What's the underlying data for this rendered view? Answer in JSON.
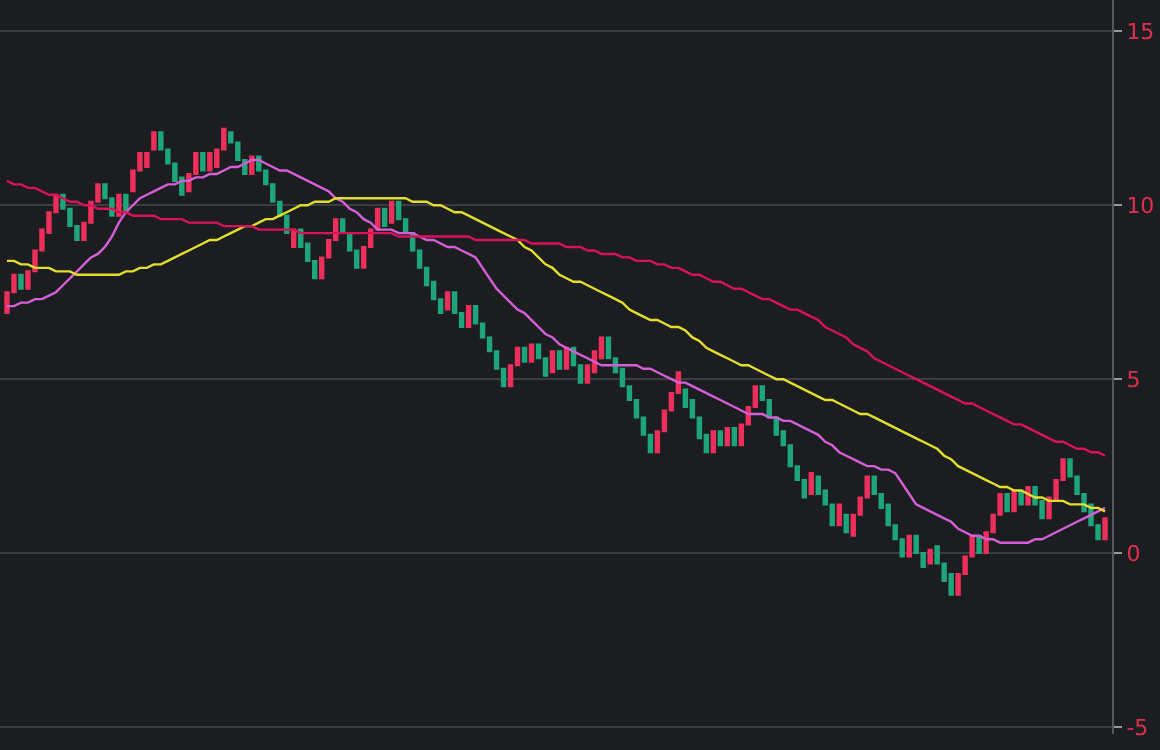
{
  "chart_data": {
    "type": "candlestick",
    "categories": [
      null,
      null,
      null,
      null,
      null,
      null,
      null,
      null,
      null,
      null,
      null,
      null,
      null,
      null,
      null,
      null,
      null,
      null,
      null,
      null,
      null,
      null,
      null,
      null,
      null,
      null,
      null,
      null,
      null,
      null,
      null,
      null,
      null,
      null,
      null,
      null,
      null,
      null,
      null,
      null,
      null,
      null,
      null,
      null,
      null,
      null,
      null,
      null,
      null,
      null,
      null,
      null,
      null,
      null,
      null,
      null,
      null,
      null,
      null,
      null,
      null,
      null,
      null,
      null,
      null,
      null,
      null,
      null,
      null,
      null,
      null,
      null,
      null,
      null,
      null,
      null,
      null,
      null,
      null,
      null,
      null,
      null,
      null,
      null,
      null,
      null,
      null,
      null,
      null,
      null,
      null,
      null,
      null,
      null,
      null,
      null,
      null,
      null,
      null,
      null,
      null,
      null,
      null,
      null,
      null,
      null,
      null,
      null,
      null,
      null,
      null,
      null,
      null,
      null,
      null,
      null,
      null,
      null,
      null,
      null,
      null,
      null,
      null,
      null,
      null,
      null,
      null,
      null,
      null,
      null,
      null,
      null,
      null,
      null,
      null,
      null,
      null,
      null,
      null,
      null,
      null,
      null,
      null,
      null,
      null,
      null,
      null,
      null,
      null,
      null,
      null,
      null,
      null,
      null,
      null,
      null,
      null,
      null
    ],
    "ohlc": [
      [
        6.9,
        7.5,
        6.9,
        7.5
      ],
      [
        7.5,
        8.0,
        7.5,
        8.0
      ],
      [
        8.0,
        8.0,
        7.6,
        7.6
      ],
      [
        7.6,
        8.1,
        7.6,
        8.1
      ],
      [
        8.1,
        8.7,
        8.1,
        8.7
      ],
      [
        8.7,
        9.3,
        8.7,
        9.3
      ],
      [
        9.2,
        9.8,
        9.2,
        9.8
      ],
      [
        9.8,
        10.3,
        9.8,
        10.3
      ],
      [
        10.3,
        10.3,
        9.9,
        9.9
      ],
      [
        9.9,
        9.9,
        9.4,
        9.4
      ],
      [
        9.4,
        9.4,
        9.0,
        9.0
      ],
      [
        9.0,
        9.5,
        9.0,
        9.5
      ],
      [
        9.5,
        10.1,
        9.5,
        10.1
      ],
      [
        10.1,
        10.6,
        10.1,
        10.6
      ],
      [
        10.6,
        10.6,
        10.2,
        10.2
      ],
      [
        10.2,
        10.2,
        9.7,
        9.7
      ],
      [
        9.7,
        10.3,
        9.7,
        10.3
      ],
      [
        10.3,
        10.3,
        9.8,
        9.8
      ],
      [
        10.4,
        11.0,
        10.4,
        11.0
      ],
      [
        11.0,
        11.5,
        11.0,
        11.5
      ],
      [
        11.1,
        11.5,
        11.1,
        11.5
      ],
      [
        11.6,
        12.1,
        11.6,
        12.1
      ],
      [
        12.1,
        12.1,
        11.6,
        11.6
      ],
      [
        11.6,
        11.6,
        11.2,
        11.2
      ],
      [
        11.2,
        11.2,
        10.7,
        10.7
      ],
      [
        10.8,
        10.8,
        10.3,
        10.3
      ],
      [
        10.4,
        10.9,
        10.4,
        10.9
      ],
      [
        10.9,
        11.5,
        10.9,
        11.5
      ],
      [
        11.5,
        11.5,
        11.0,
        11.0
      ],
      [
        11.0,
        11.5,
        11.0,
        11.5
      ],
      [
        11.1,
        11.6,
        11.1,
        11.6
      ],
      [
        11.6,
        12.2,
        11.6,
        12.2
      ],
      [
        12.1,
        12.1,
        11.8,
        11.8
      ],
      [
        11.8,
        11.8,
        11.3,
        11.3
      ],
      [
        11.3,
        11.3,
        10.9,
        10.9
      ],
      [
        10.9,
        11.4,
        10.9,
        11.4
      ],
      [
        11.4,
        11.4,
        11.0,
        11.0
      ],
      [
        11.0,
        11.0,
        10.6,
        10.6
      ],
      [
        10.6,
        10.6,
        10.1,
        10.1
      ],
      [
        10.1,
        10.1,
        9.7,
        9.7
      ],
      [
        9.7,
        9.7,
        9.2,
        9.2
      ],
      [
        8.8,
        9.3,
        8.8,
        9.3
      ],
      [
        9.3,
        9.3,
        8.8,
        8.8
      ],
      [
        8.9,
        8.9,
        8.4,
        8.4
      ],
      [
        8.4,
        8.4,
        7.9,
        7.9
      ],
      [
        7.9,
        8.5,
        7.9,
        8.5
      ],
      [
        8.5,
        9.0,
        8.5,
        9.0
      ],
      [
        9.0,
        9.6,
        9.0,
        9.6
      ],
      [
        9.6,
        9.6,
        9.2,
        9.2
      ],
      [
        9.2,
        9.2,
        8.7,
        8.7
      ],
      [
        8.7,
        8.7,
        8.2,
        8.2
      ],
      [
        8.2,
        8.8,
        8.2,
        8.8
      ],
      [
        8.8,
        9.3,
        8.8,
        9.3
      ],
      [
        9.3,
        9.9,
        9.3,
        9.9
      ],
      [
        9.9,
        9.9,
        9.4,
        9.4
      ],
      [
        9.5,
        10.1,
        9.5,
        10.1
      ],
      [
        10.1,
        10.1,
        9.6,
        9.6
      ],
      [
        9.6,
        9.6,
        9.2,
        9.2
      ],
      [
        9.2,
        9.2,
        8.7,
        8.7
      ],
      [
        8.7,
        8.7,
        8.2,
        8.2
      ],
      [
        8.2,
        8.2,
        7.7,
        7.7
      ],
      [
        7.8,
        7.8,
        7.3,
        7.3
      ],
      [
        7.3,
        7.3,
        6.9,
        6.9
      ],
      [
        7.0,
        7.5,
        7.0,
        7.5
      ],
      [
        7.5,
        7.5,
        6.9,
        6.9
      ],
      [
        6.9,
        6.9,
        6.5,
        6.5
      ],
      [
        6.5,
        7.1,
        6.5,
        7.1
      ],
      [
        7.1,
        7.1,
        6.6,
        6.6
      ],
      [
        6.6,
        6.6,
        6.2,
        6.2
      ],
      [
        6.2,
        6.2,
        5.8,
        5.8
      ],
      [
        5.8,
        5.8,
        5.3,
        5.3
      ],
      [
        5.3,
        5.3,
        4.8,
        4.8
      ],
      [
        4.8,
        5.4,
        4.8,
        5.4
      ],
      [
        5.4,
        5.9,
        5.4,
        5.9
      ],
      [
        5.9,
        5.9,
        5.5,
        5.5
      ],
      [
        5.5,
        6.0,
        5.5,
        6.0
      ],
      [
        6.0,
        6.0,
        5.6,
        5.6
      ],
      [
        5.6,
        5.6,
        5.1,
        5.1
      ],
      [
        5.2,
        5.8,
        5.2,
        5.8
      ],
      [
        5.8,
        5.8,
        5.3,
        5.3
      ],
      [
        5.3,
        5.9,
        5.3,
        5.9
      ],
      [
        5.9,
        5.9,
        5.4,
        5.4
      ],
      [
        5.4,
        5.4,
        4.9,
        4.9
      ],
      [
        4.9,
        5.4,
        4.9,
        5.4
      ],
      [
        5.2,
        5.8,
        5.2,
        5.8
      ],
      [
        5.6,
        6.2,
        5.6,
        6.2
      ],
      [
        6.2,
        6.2,
        5.6,
        5.6
      ],
      [
        5.6,
        5.6,
        5.2,
        5.2
      ],
      [
        5.3,
        5.3,
        4.8,
        4.8
      ],
      [
        4.8,
        4.8,
        4.4,
        4.4
      ],
      [
        4.4,
        4.4,
        3.9,
        3.9
      ],
      [
        3.9,
        3.9,
        3.4,
        3.4
      ],
      [
        3.4,
        3.4,
        2.9,
        2.9
      ],
      [
        2.9,
        3.5,
        2.9,
        3.5
      ],
      [
        3.5,
        4.1,
        3.5,
        4.1
      ],
      [
        4.1,
        4.6,
        4.1,
        4.6
      ],
      [
        4.6,
        5.2,
        4.6,
        5.2
      ],
      [
        4.7,
        4.7,
        4.2,
        4.2
      ],
      [
        4.4,
        4.4,
        3.9,
        3.9
      ],
      [
        3.9,
        3.9,
        3.3,
        3.3
      ],
      [
        3.4,
        3.4,
        2.9,
        2.9
      ],
      [
        2.9,
        3.5,
        2.9,
        3.5
      ],
      [
        3.5,
        3.5,
        3.1,
        3.1
      ],
      [
        3.1,
        3.6,
        3.1,
        3.6
      ],
      [
        3.6,
        3.6,
        3.1,
        3.1
      ],
      [
        3.1,
        3.7,
        3.1,
        3.7
      ],
      [
        3.7,
        4.2,
        3.7,
        4.2
      ],
      [
        4.2,
        4.8,
        4.2,
        4.8
      ],
      [
        4.8,
        4.8,
        4.4,
        4.4
      ],
      [
        4.4,
        4.4,
        3.9,
        3.9
      ],
      [
        3.9,
        3.9,
        3.4,
        3.4
      ],
      [
        3.5,
        3.5,
        3.1,
        3.1
      ],
      [
        3.1,
        3.1,
        2.5,
        2.5
      ],
      [
        2.5,
        2.5,
        2.1,
        2.1
      ],
      [
        2.1,
        2.1,
        1.6,
        1.6
      ],
      [
        1.7,
        2.3,
        1.7,
        2.3
      ],
      [
        2.2,
        2.2,
        1.7,
        1.7
      ],
      [
        1.8,
        1.8,
        1.4,
        1.4
      ],
      [
        1.4,
        1.4,
        0.8,
        0.8
      ],
      [
        0.8,
        1.4,
        0.8,
        1.4
      ],
      [
        1.1,
        1.1,
        0.6,
        0.6
      ],
      [
        0.5,
        1.1,
        0.5,
        1.1
      ],
      [
        1.1,
        1.6,
        1.1,
        1.6
      ],
      [
        1.6,
        2.2,
        1.6,
        2.2
      ],
      [
        2.2,
        2.2,
        1.7,
        1.7
      ],
      [
        1.7,
        1.7,
        1.3,
        1.3
      ],
      [
        1.4,
        1.4,
        0.8,
        0.8
      ],
      [
        0.8,
        0.8,
        0.4,
        0.4
      ],
      [
        0.4,
        0.4,
        -0.1,
        -0.1
      ],
      [
        -0.1,
        0.5,
        -0.1,
        0.5
      ],
      [
        0.5,
        0.5,
        0.0,
        0.0
      ],
      [
        0.0,
        0.0,
        -0.4,
        -0.4
      ],
      [
        -0.3,
        0.1,
        -0.3,
        0.1
      ],
      [
        0.2,
        0.2,
        -0.3,
        -0.3
      ],
      [
        -0.3,
        -0.3,
        -0.8,
        -0.8
      ],
      [
        -0.6,
        -0.6,
        -1.2,
        -1.2
      ],
      [
        -1.2,
        -0.6,
        -1.2,
        -0.6
      ],
      [
        -0.6,
        -0.1,
        -0.6,
        -0.1
      ],
      [
        -0.1,
        0.5,
        -0.1,
        0.5
      ],
      [
        0.5,
        0.5,
        0.0,
        0.0
      ],
      [
        0.0,
        0.6,
        0.0,
        0.6
      ],
      [
        0.6,
        1.1,
        0.6,
        1.1
      ],
      [
        1.1,
        1.7,
        1.1,
        1.7
      ],
      [
        1.7,
        1.7,
        1.2,
        1.2
      ],
      [
        1.2,
        1.8,
        1.2,
        1.8
      ],
      [
        1.8,
        1.8,
        1.4,
        1.4
      ],
      [
        1.4,
        1.9,
        1.4,
        1.9
      ],
      [
        1.9,
        1.9,
        1.4,
        1.4
      ],
      [
        1.5,
        1.5,
        1.0,
        1.0
      ],
      [
        1.0,
        1.6,
        1.0,
        1.6
      ],
      [
        1.5,
        2.1,
        1.5,
        2.1
      ],
      [
        2.1,
        2.7,
        2.1,
        2.7
      ],
      [
        2.7,
        2.7,
        2.2,
        2.2
      ],
      [
        2.2,
        2.2,
        1.7,
        1.7
      ],
      [
        1.7,
        1.7,
        1.2,
        1.2
      ],
      [
        1.4,
        1.4,
        0.8,
        0.8
      ],
      [
        0.8,
        0.8,
        0.4,
        0.4
      ],
      [
        0.4,
        1.0,
        0.4,
        1.0
      ]
    ],
    "series": [
      {
        "type": "line",
        "color": "#d55fd6",
        "values": [
          7.1,
          7.1,
          7.2,
          7.2,
          7.3,
          7.3,
          7.4,
          7.5,
          7.7,
          7.9,
          8.1,
          8.3,
          8.5,
          8.6,
          8.8,
          9.1,
          9.5,
          9.8,
          10.0,
          10.2,
          10.3,
          10.4,
          10.5,
          10.6,
          10.6,
          10.7,
          10.7,
          10.8,
          10.8,
          10.9,
          10.9,
          11.0,
          11.1,
          11.1,
          11.2,
          11.3,
          11.3,
          11.2,
          11.1,
          11.0,
          11.0,
          10.9,
          10.8,
          10.7,
          10.6,
          10.5,
          10.4,
          10.2,
          10.1,
          9.9,
          9.8,
          9.6,
          9.5,
          9.3,
          9.3,
          9.3,
          9.2,
          9.2,
          9.2,
          9.1,
          9.0,
          9.0,
          8.9,
          8.8,
          8.8,
          8.7,
          8.6,
          8.5,
          8.2,
          7.9,
          7.6,
          7.4,
          7.2,
          7.0,
          6.9,
          6.7,
          6.5,
          6.3,
          6.2,
          6.0,
          5.9,
          5.8,
          5.7,
          5.6,
          5.5,
          5.4,
          5.4,
          5.4,
          5.4,
          5.4,
          5.4,
          5.3,
          5.3,
          5.2,
          5.1,
          5.0,
          4.9,
          4.9,
          4.8,
          4.7,
          4.6,
          4.5,
          4.4,
          4.3,
          4.2,
          4.1,
          4.0,
          4.0,
          4.0,
          3.9,
          3.9,
          3.8,
          3.8,
          3.7,
          3.6,
          3.5,
          3.4,
          3.2,
          3.1,
          2.9,
          2.8,
          2.7,
          2.6,
          2.5,
          2.5,
          2.4,
          2.4,
          2.3,
          2.0,
          1.7,
          1.4,
          1.3,
          1.2,
          1.1,
          1.0,
          0.9,
          0.7,
          0.6,
          0.5,
          0.5,
          0.4,
          0.4,
          0.3,
          0.3,
          0.3,
          0.3,
          0.3,
          0.4,
          0.4,
          0.5,
          0.6,
          0.7,
          0.8,
          0.9,
          1.0,
          1.1,
          1.2,
          1.3
        ]
      },
      {
        "type": "line",
        "color": "#e3df2e",
        "values": [
          8.4,
          8.4,
          8.3,
          8.3,
          8.2,
          8.2,
          8.2,
          8.1,
          8.1,
          8.1,
          8.0,
          8.0,
          8.0,
          8.0,
          8.0,
          8.0,
          8.0,
          8.1,
          8.1,
          8.2,
          8.2,
          8.3,
          8.3,
          8.4,
          8.5,
          8.6,
          8.7,
          8.8,
          8.9,
          9.0,
          9.0,
          9.1,
          9.2,
          9.3,
          9.4,
          9.4,
          9.5,
          9.6,
          9.6,
          9.7,
          9.8,
          9.9,
          10.0,
          10.0,
          10.1,
          10.1,
          10.1,
          10.2,
          10.2,
          10.2,
          10.2,
          10.2,
          10.2,
          10.2,
          10.2,
          10.2,
          10.2,
          10.2,
          10.1,
          10.1,
          10.1,
          10.0,
          10.0,
          9.9,
          9.8,
          9.8,
          9.7,
          9.6,
          9.5,
          9.4,
          9.3,
          9.2,
          9.1,
          9.0,
          8.8,
          8.7,
          8.5,
          8.3,
          8.2,
          8.0,
          7.9,
          7.8,
          7.8,
          7.7,
          7.6,
          7.5,
          7.4,
          7.3,
          7.2,
          7.0,
          6.9,
          6.8,
          6.7,
          6.7,
          6.6,
          6.5,
          6.5,
          6.4,
          6.2,
          6.1,
          5.9,
          5.8,
          5.7,
          5.6,
          5.5,
          5.4,
          5.4,
          5.3,
          5.2,
          5.1,
          5.0,
          5.0,
          4.9,
          4.8,
          4.7,
          4.6,
          4.5,
          4.4,
          4.4,
          4.3,
          4.2,
          4.1,
          4.0,
          4.0,
          3.9,
          3.8,
          3.7,
          3.6,
          3.5,
          3.4,
          3.3,
          3.2,
          3.1,
          3.0,
          2.8,
          2.7,
          2.5,
          2.4,
          2.3,
          2.2,
          2.1,
          2.0,
          1.9,
          1.9,
          1.8,
          1.8,
          1.7,
          1.6,
          1.6,
          1.5,
          1.5,
          1.5,
          1.4,
          1.4,
          1.4,
          1.3,
          1.3,
          1.2
        ]
      },
      {
        "type": "line",
        "color": "#d8135b",
        "values": [
          10.7,
          10.6,
          10.6,
          10.5,
          10.5,
          10.4,
          10.3,
          10.3,
          10.2,
          10.1,
          10.1,
          10.0,
          10.0,
          9.9,
          9.9,
          9.9,
          9.8,
          9.8,
          9.7,
          9.7,
          9.7,
          9.7,
          9.6,
          9.6,
          9.6,
          9.6,
          9.5,
          9.5,
          9.5,
          9.5,
          9.5,
          9.4,
          9.4,
          9.4,
          9.4,
          9.4,
          9.3,
          9.3,
          9.3,
          9.3,
          9.3,
          9.3,
          9.2,
          9.2,
          9.2,
          9.2,
          9.2,
          9.2,
          9.2,
          9.2,
          9.2,
          9.2,
          9.2,
          9.2,
          9.2,
          9.2,
          9.1,
          9.1,
          9.1,
          9.1,
          9.1,
          9.1,
          9.1,
          9.1,
          9.1,
          9.1,
          9.1,
          9.0,
          9.0,
          9.0,
          9.0,
          9.0,
          9.0,
          9.0,
          9.0,
          8.9,
          8.9,
          8.9,
          8.9,
          8.9,
          8.8,
          8.8,
          8.8,
          8.7,
          8.7,
          8.6,
          8.6,
          8.6,
          8.5,
          8.5,
          8.4,
          8.4,
          8.4,
          8.3,
          8.3,
          8.2,
          8.2,
          8.1,
          8.0,
          8.0,
          7.9,
          7.8,
          7.8,
          7.7,
          7.6,
          7.6,
          7.5,
          7.4,
          7.3,
          7.3,
          7.2,
          7.1,
          7.0,
          7.0,
          6.9,
          6.8,
          6.7,
          6.5,
          6.4,
          6.3,
          6.2,
          6.0,
          5.9,
          5.8,
          5.6,
          5.5,
          5.4,
          5.3,
          5.2,
          5.1,
          5.0,
          4.9,
          4.8,
          4.7,
          4.6,
          4.5,
          4.4,
          4.3,
          4.3,
          4.2,
          4.1,
          4.0,
          3.9,
          3.8,
          3.7,
          3.7,
          3.6,
          3.5,
          3.4,
          3.3,
          3.2,
          3.2,
          3.1,
          3.0,
          3.0,
          2.9,
          2.9,
          2.8
        ]
      }
    ],
    "ylim": [
      -5.2,
      15.9
    ],
    "yticks": [
      15,
      10,
      5,
      0,
      -5
    ],
    "grid": "y"
  }
}
